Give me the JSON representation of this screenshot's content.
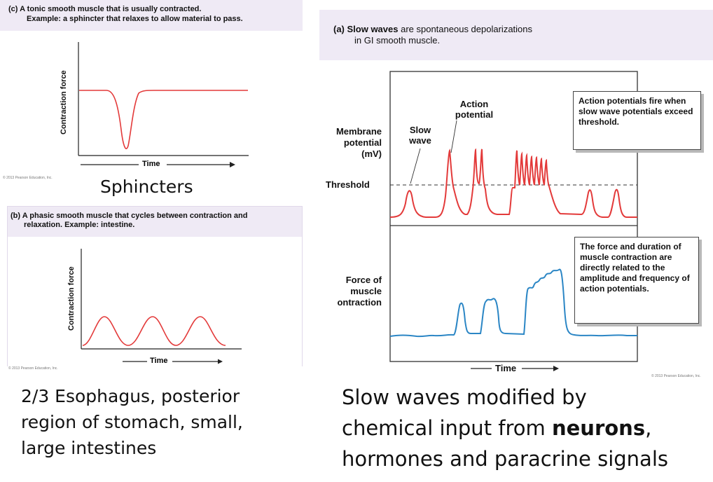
{
  "panel_c": {
    "caption_line1": "(c) A tonic smooth muscle that is usually contracted.",
    "caption_line2": "Example: a sphincter that relaxes to allow material to pass.",
    "y_axis": "Contraction force",
    "x_axis": "Time",
    "copyright": "© 2013 Pearson Education, Inc.",
    "label": "Sphincters"
  },
  "panel_b": {
    "caption_line1": "(b) A phasic smooth muscle that cycles between contraction and",
    "caption_line2": "relaxation. Example: intestine.",
    "y_axis": "Contraction force",
    "x_axis": "Time",
    "copyright": "© 2013 Pearson Education, Inc.",
    "label": "2/3 Esophagus, posterior region of stomach, small, large intestines"
  },
  "panel_a": {
    "caption_bold": "(a) Slow waves",
    "caption_rest1": " are spontaneous depolarizations",
    "caption_line2": "in GI smooth muscle.",
    "y_label_top_1": "Membrane",
    "y_label_top_2": "potential",
    "y_label_top_3": "(mV)",
    "threshold": "Threshold",
    "slow_wave_1": "Slow",
    "slow_wave_2": "wave",
    "action_potential_1": "Action",
    "action_potential_2": "potential",
    "box_top": "Action potentials fire when slow wave potentials exceed threshold.",
    "y_label_bottom_1": "Force of",
    "y_label_bottom_2": "muscle",
    "y_label_bottom_3": "ontraction",
    "box_bottom": "The force and duration of muscle contraction are directly related to the amplitude and frequency of action potentials.",
    "x_axis": "Time",
    "copyright": "© 2013 Pearson Education, Inc."
  },
  "footer": {
    "line1": "Slow waves modified by",
    "line2_start": "chemical input from ",
    "line2_bold": "neurons",
    "line2_end": ",",
    "line3": "hormones and paracrine signals"
  },
  "colors": {
    "red_trace": "#e33a3a",
    "blue_trace": "#2b86c5",
    "panel_header": "#efeaf5"
  }
}
